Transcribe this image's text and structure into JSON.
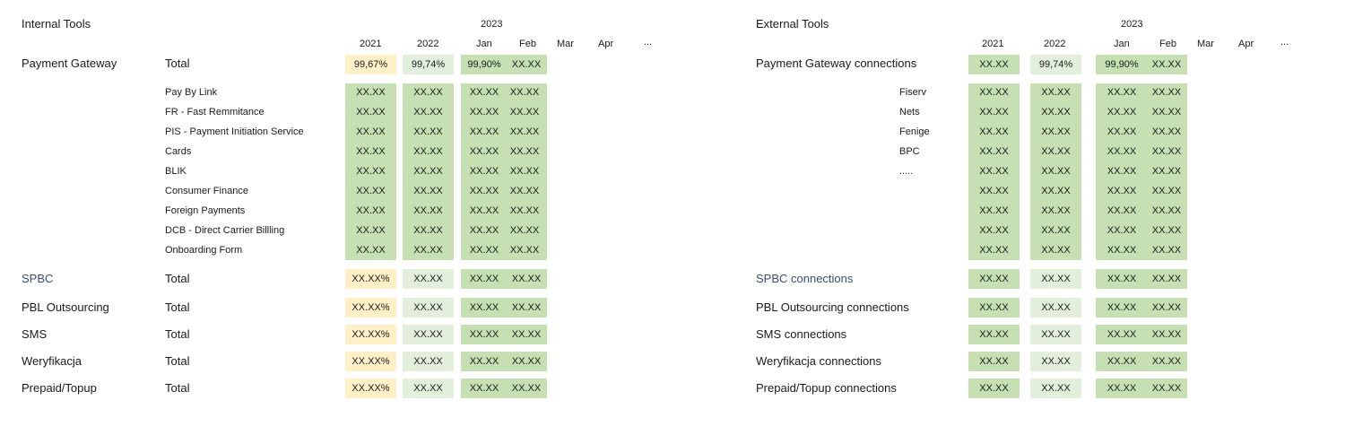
{
  "left": {
    "title": "Internal Tools",
    "year_header": "2023",
    "col_headers": [
      "2021",
      "2022",
      "Jan",
      "Feb",
      "Mar",
      "Apr",
      "..."
    ],
    "main_label": "Payment Gateway",
    "main_total": "Total",
    "main_values": [
      "99,67%",
      "99,74%",
      "99,90%",
      "XX.XX"
    ],
    "sub_items": [
      "Pay By Link",
      "FR - Fast Remmitance",
      "PIS - Payment Initiation Service",
      "Cards",
      "BLIK",
      "Consumer Finance",
      "Foreign Payments",
      "DCB - Direct Carrier Billling",
      "Onboarding Form"
    ],
    "sub_value": "XX.XX",
    "rows": [
      {
        "label": "SPBC",
        "total": "Total",
        "values": [
          "XX.XX%",
          "XX.XX",
          "XX.XX",
          "XX.XX"
        ]
      },
      {
        "label": "PBL Outsourcing",
        "total": "Total",
        "values": [
          "XX.XX%",
          "XX.XX",
          "XX.XX",
          "XX.XX"
        ]
      },
      {
        "label": "SMS",
        "total": "Total",
        "values": [
          "XX.XX%",
          "XX.XX",
          "XX.XX",
          "XX.XX"
        ]
      },
      {
        "label": "Weryfikacja",
        "total": "Total",
        "values": [
          "XX.XX%",
          "XX.XX",
          "XX.XX",
          "XX.XX"
        ]
      },
      {
        "label": "Prepaid/Topup",
        "total": "Total",
        "values": [
          "XX.XX%",
          "XX.XX",
          "XX.XX",
          "XX.XX"
        ]
      }
    ]
  },
  "right": {
    "title": "External Tools",
    "year_header": "2023",
    "col_headers": [
      "2021",
      "2022",
      "Jan",
      "Feb",
      "Mar",
      "Apr",
      "..."
    ],
    "main_label": "Payment Gateway connections",
    "main_values": [
      "XX.XX",
      "99,74%",
      "99,90%",
      "XX.XX"
    ],
    "sub_items": [
      "Fiserv",
      "Nets",
      "Fenige",
      "BPC",
      "....."
    ],
    "sub_value": "XX.XX",
    "rows": [
      {
        "label": "SPBC connections",
        "values": [
          "XX.XX",
          "XX.XX",
          "XX.XX",
          "XX.XX"
        ]
      },
      {
        "label": "PBL Outsourcing connections",
        "values": [
          "XX.XX",
          "XX.XX",
          "XX.XX",
          "XX.XX"
        ]
      },
      {
        "label": "SMS connections",
        "values": [
          "XX.XX",
          "XX.XX",
          "XX.XX",
          "XX.XX"
        ]
      },
      {
        "label": "Weryfikacja connections",
        "values": [
          "XX.XX",
          "XX.XX",
          "XX.XX",
          "XX.XX"
        ]
      },
      {
        "label": "Prepaid/Topup connections",
        "values": [
          "XX.XX",
          "XX.XX",
          "XX.XX",
          "XX.XX"
        ]
      }
    ]
  },
  "colors": {
    "yellow": "#fff0c8",
    "light_green": "#e2efda",
    "green": "#c6e0b4",
    "blue_label": "#3a4f6e"
  }
}
